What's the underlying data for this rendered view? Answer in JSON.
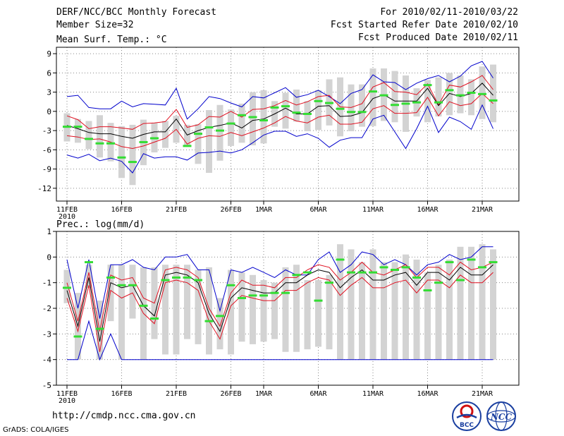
{
  "header": {
    "title": "DERF/NCC/BCC Monthly Forecast",
    "member_size": "Member Size=32",
    "period": "For 2010/02/11-2010/03/22",
    "started": "Fcst Started Refer Date 2010/02/10",
    "produced": "Fcst Produced Date 2010/02/11"
  },
  "footer": {
    "url": "http://cmdp.ncc.cma.gov.cn",
    "credit": "GrADS: COLA/IGES",
    "logo_left": "BCC",
    "logo_right": "NCC"
  },
  "colors": {
    "box": "#d3d3d3",
    "mean": "#000000",
    "spread": "#e01020",
    "envelope": "#0000cc",
    "obs": "#33dd33"
  },
  "x_ticks": [
    {
      "day": 0,
      "label": "11FEB",
      "sub": "2010"
    },
    {
      "day": 5,
      "label": "16FEB"
    },
    {
      "day": 10,
      "label": "21FEB"
    },
    {
      "day": 15,
      "label": "26FEB"
    },
    {
      "day": 18,
      "label": "1MAR"
    },
    {
      "day": 23,
      "label": "6MAR"
    },
    {
      "day": 28,
      "label": "11MAR"
    },
    {
      "day": 33,
      "label": "16MAR"
    },
    {
      "day": 38,
      "label": "21MAR"
    }
  ],
  "chart_data": [
    {
      "type": "line",
      "title": "Mean Surf. Temp.: °C",
      "ylim": [
        -14,
        10
      ],
      "yticks": [
        -12,
        -9,
        -6,
        -3,
        0,
        3,
        6,
        9
      ],
      "x": [
        0,
        1,
        2,
        3,
        4,
        5,
        6,
        7,
        8,
        9,
        10,
        11,
        12,
        13,
        14,
        15,
        16,
        17,
        18,
        19,
        20,
        21,
        22,
        23,
        24,
        25,
        26,
        27,
        28,
        29,
        30,
        31,
        32,
        33,
        34,
        35,
        36,
        37,
        38,
        39
      ],
      "series": [
        {
          "name": "box_top",
          "values": [
            -0.3,
            -1.2,
            -1.5,
            -0.6,
            -1.8,
            -2.3,
            -2.1,
            -1.3,
            -1.8,
            -1.5,
            -0.7,
            -2.1,
            -2.0,
            0.2,
            1.0,
            0.3,
            1.2,
            3.0,
            3.3,
            1.6,
            2.9,
            3.4,
            1.6,
            3.3,
            5.0,
            5.3,
            4.2,
            4.2,
            6.7,
            6.7,
            6.3,
            5.6,
            3.6,
            4.9,
            5.3,
            6.0,
            5.6,
            5.0,
            7.0,
            7.3
          ]
        },
        {
          "name": "box_bottom",
          "values": [
            -4.7,
            -4.9,
            -5.9,
            -7.2,
            -7.8,
            -10.4,
            -11.5,
            -8.4,
            -6.4,
            -5.7,
            -4.9,
            -5.3,
            -8.2,
            -9.6,
            -7.7,
            -5.4,
            -4.9,
            -5.3,
            -5.0,
            -2.4,
            -2.7,
            -1.6,
            -3.1,
            -2.9,
            -2.2,
            -3.9,
            -3.1,
            -2.4,
            -2.3,
            -1.5,
            -1.7,
            -3.2,
            -0.8,
            -1.7,
            -0.8,
            -0.6,
            -0.3,
            -0.6,
            -1.2,
            -1.7
          ]
        },
        {
          "name": "ens_max",
          "values": [
            2.3,
            2.5,
            0.6,
            0.4,
            0.4,
            1.6,
            0.7,
            1.2,
            1.1,
            1.0,
            3.6,
            -1.2,
            0.4,
            2.3,
            2.0,
            1.3,
            0.7,
            2.3,
            2.1,
            2.9,
            3.7,
            2.2,
            2.6,
            3.3,
            2.3,
            1.2,
            2.8,
            3.4,
            5.7,
            4.6,
            4.5,
            3.4,
            4.4,
            5.1,
            5.6,
            4.6,
            5.5,
            7.1,
            7.8,
            5.2
          ]
        },
        {
          "name": "mean_plus",
          "values": [
            -0.7,
            -1.3,
            -2.7,
            -2.4,
            -2.4,
            -2.6,
            -2.8,
            -1.9,
            -1.8,
            -1.6,
            0.3,
            -2.5,
            -2.1,
            -0.8,
            -0.9,
            0.0,
            -0.9,
            0.3,
            0.4,
            0.9,
            1.7,
            1.0,
            1.5,
            2.3,
            2.5,
            0.7,
            0.6,
            1.2,
            3.8,
            4.5,
            3.1,
            3.0,
            2.6,
            4.3,
            1.0,
            4.1,
            3.8,
            4.6,
            5.6,
            3.4
          ]
        },
        {
          "name": "mean",
          "values": [
            -2.2,
            -2.7,
            -3.3,
            -3.5,
            -3.5,
            -3.9,
            -4.2,
            -3.6,
            -3.2,
            -3.2,
            -1.2,
            -3.7,
            -3.0,
            -2.5,
            -2.2,
            -1.8,
            -2.6,
            -1.4,
            -1.2,
            -0.4,
            0.5,
            -0.4,
            -0.4,
            0.8,
            0.9,
            -0.8,
            -0.7,
            -0.2,
            2.0,
            2.6,
            1.6,
            1.6,
            1.6,
            3.6,
            0.9,
            2.8,
            2.3,
            2.8,
            4.4,
            2.5
          ]
        },
        {
          "name": "mean_minus",
          "values": [
            -3.8,
            -4.0,
            -4.4,
            -4.3,
            -4.8,
            -5.5,
            -5.8,
            -5.4,
            -4.8,
            -4.2,
            -2.8,
            -5.1,
            -4.2,
            -3.8,
            -3.9,
            -3.3,
            -3.8,
            -3.2,
            -2.6,
            -1.8,
            -0.8,
            -1.5,
            -1.8,
            -0.9,
            -0.6,
            -2.0,
            -2.0,
            -1.7,
            0.4,
            0.9,
            -0.3,
            -0.3,
            -0.2,
            2.2,
            -0.7,
            1.5,
            0.9,
            1.2,
            2.8,
            1.2
          ]
        },
        {
          "name": "ens_min",
          "values": [
            -6.8,
            -7.3,
            -6.7,
            -7.7,
            -7.3,
            -7.8,
            -9.6,
            -6.6,
            -7.3,
            -7.1,
            -7.1,
            -7.6,
            -6.5,
            -6.4,
            -6.2,
            -6.5,
            -6.0,
            -4.9,
            -3.7,
            -3.1,
            -3.1,
            -3.9,
            -3.5,
            -4.2,
            -5.6,
            -4.5,
            -4.1,
            -4.1,
            -1.2,
            -0.6,
            -3.2,
            -5.8,
            -2.7,
            0.8,
            -3.3,
            -0.9,
            -1.6,
            -2.8,
            1.0,
            -2.7
          ]
        },
        {
          "name": "observed",
          "values": [
            -2.4,
            -2.4,
            -4.3,
            -5.0,
            -5.0,
            -7.2,
            -7.9,
            -4.8,
            -4.2,
            null,
            null,
            -5.4,
            -3.5,
            -2.5,
            -3.0,
            -1.9,
            -0.6,
            -0.9,
            -1.4,
            0.6,
            0.8,
            -0.2,
            -0.4,
            1.6,
            1.3,
            0.4,
            -0.1,
            -0.1,
            3.1,
            2.5,
            1.0,
            1.2,
            1.4,
            4.1,
            1.4,
            3.3,
            2.5,
            2.9,
            2.7,
            1.7
          ]
        }
      ]
    },
    {
      "type": "line",
      "title": "Prec.: log(mm/d)",
      "ylim": [
        -5,
        1
      ],
      "yticks": [
        -5,
        -4,
        -3,
        -2,
        -1,
        0,
        1
      ],
      "x": [
        0,
        1,
        2,
        3,
        4,
        5,
        6,
        7,
        8,
        9,
        10,
        11,
        12,
        13,
        14,
        15,
        16,
        17,
        18,
        19,
        20,
        21,
        22,
        23,
        24,
        25,
        26,
        27,
        28,
        29,
        30,
        31,
        32,
        33,
        34,
        35,
        36,
        37,
        38,
        39
      ],
      "series": [
        {
          "name": "box_top",
          "values": [
            -0.5,
            -1.4,
            -0.3,
            -1.7,
            -0.3,
            -0.3,
            -0.3,
            -0.4,
            -0.4,
            -0.3,
            -0.3,
            -0.3,
            -0.5,
            -0.4,
            -1.6,
            -0.5,
            -0.6,
            -0.7,
            -0.9,
            -1.0,
            -0.4,
            -0.3,
            -0.9,
            -0.9,
            -0.7,
            0.5,
            0.3,
            -0.2,
            0.3,
            -0.2,
            -0.2,
            0.1,
            -0.1,
            -0.6,
            -0.3,
            -0.1,
            0.4,
            0.4,
            0.5,
            0.3
          ]
        },
        {
          "name": "box_bottom",
          "values": [
            -1.8,
            -4.0,
            -1.2,
            -4.0,
            -2.5,
            -4.0,
            -2.4,
            -4.0,
            -3.2,
            -3.8,
            -3.8,
            -3.2,
            -3.4,
            -3.8,
            -3.6,
            -3.8,
            -3.3,
            -3.4,
            -3.3,
            -3.2,
            -3.7,
            -3.7,
            -3.6,
            -3.5,
            -3.6,
            -4.0,
            -4.0,
            -4.0,
            -4.0,
            -4.0,
            -4.0,
            -4.0,
            -4.0,
            -4.0,
            -4.0,
            -4.0,
            -4.0,
            -4.0,
            -4.0,
            -4.0
          ]
        },
        {
          "name": "ens_max",
          "values": [
            -0.1,
            -2.0,
            -0.1,
            -2.4,
            -0.3,
            -0.3,
            -0.1,
            -0.4,
            -0.5,
            0.0,
            0.0,
            0.1,
            -0.5,
            -0.5,
            -2.1,
            -0.5,
            -0.6,
            -0.4,
            -0.6,
            -0.8,
            -0.5,
            -0.7,
            -0.7,
            -0.1,
            0.2,
            -0.6,
            -0.3,
            0.2,
            0.1,
            -0.3,
            -0.1,
            -0.3,
            -0.7,
            -0.3,
            -0.2,
            0.1,
            -0.1,
            0.0,
            0.4,
            0.4
          ]
        },
        {
          "name": "mean_plus",
          "values": [
            -1.0,
            -2.5,
            -0.6,
            -2.9,
            -0.7,
            -0.9,
            -0.8,
            -1.6,
            -1.8,
            -0.5,
            -0.4,
            -0.5,
            -0.8,
            -2.0,
            -2.7,
            -1.4,
            -0.9,
            -1.1,
            -1.1,
            -1.2,
            -0.8,
            -0.8,
            -0.5,
            -0.3,
            -0.4,
            -0.9,
            -0.6,
            -0.2,
            -0.6,
            -0.7,
            -0.5,
            -0.3,
            -0.8,
            -0.4,
            -0.4,
            -0.7,
            -0.2,
            -0.5,
            -0.4,
            -0.2
          ]
        },
        {
          "name": "mean",
          "values": [
            -1.3,
            -2.7,
            -0.8,
            -3.3,
            -1.0,
            -1.2,
            -1.1,
            -1.9,
            -2.3,
            -0.7,
            -0.6,
            -0.7,
            -1.0,
            -2.2,
            -2.9,
            -1.6,
            -1.2,
            -1.3,
            -1.4,
            -1.4,
            -1.0,
            -1.0,
            -0.7,
            -0.5,
            -0.6,
            -1.2,
            -0.8,
            -0.5,
            -0.9,
            -0.9,
            -0.7,
            -0.6,
            -1.1,
            -0.6,
            -0.6,
            -0.9,
            -0.4,
            -0.7,
            -0.7,
            -0.3
          ]
        },
        {
          "name": "mean_minus",
          "values": [
            -1.6,
            -2.9,
            -1.1,
            -3.7,
            -1.3,
            -1.6,
            -1.4,
            -2.2,
            -2.6,
            -1.0,
            -0.9,
            -1.0,
            -1.3,
            -2.5,
            -3.2,
            -1.9,
            -1.5,
            -1.6,
            -1.7,
            -1.7,
            -1.3,
            -1.3,
            -1.0,
            -0.8,
            -0.9,
            -1.5,
            -1.1,
            -0.8,
            -1.2,
            -1.2,
            -1.0,
            -0.9,
            -1.4,
            -0.9,
            -0.9,
            -1.2,
            -0.7,
            -1.0,
            -1.0,
            -0.6
          ]
        },
        {
          "name": "ens_min",
          "values": [
            -4.0,
            -4.0,
            -2.5,
            -4.0,
            -3.0,
            -4.0,
            -4.0,
            -4.0,
            -4.0,
            -4.0,
            -4.0,
            -4.0,
            -4.0,
            -4.0,
            -4.0,
            -4.0,
            -4.0,
            -4.0,
            -4.0,
            -4.0,
            -4.0,
            -4.0,
            -4.0,
            -4.0,
            -4.0,
            -4.0,
            -4.0,
            -4.0,
            -4.0,
            -4.0,
            -4.0,
            -4.0,
            -4.0,
            -4.0,
            -4.0,
            -4.0,
            -4.0,
            -4.0,
            -4.0,
            -4.0
          ]
        },
        {
          "name": "observed",
          "values": [
            -1.2,
            -3.1,
            -0.2,
            -2.8,
            -0.8,
            -1.1,
            -1.1,
            -1.9,
            -2.4,
            -0.9,
            -0.8,
            -0.8,
            -0.9,
            -2.5,
            -2.3,
            -1.1,
            -1.6,
            -1.5,
            -1.5,
            -1.4,
            -1.4,
            -0.7,
            -0.6,
            -1.7,
            -1.0,
            -0.1,
            -0.6,
            -0.6,
            -0.6,
            -0.4,
            -0.5,
            -0.4,
            -0.8,
            -1.3,
            -1.0,
            -0.2,
            -0.9,
            -0.1,
            -0.4,
            -0.2
          ]
        }
      ]
    }
  ]
}
